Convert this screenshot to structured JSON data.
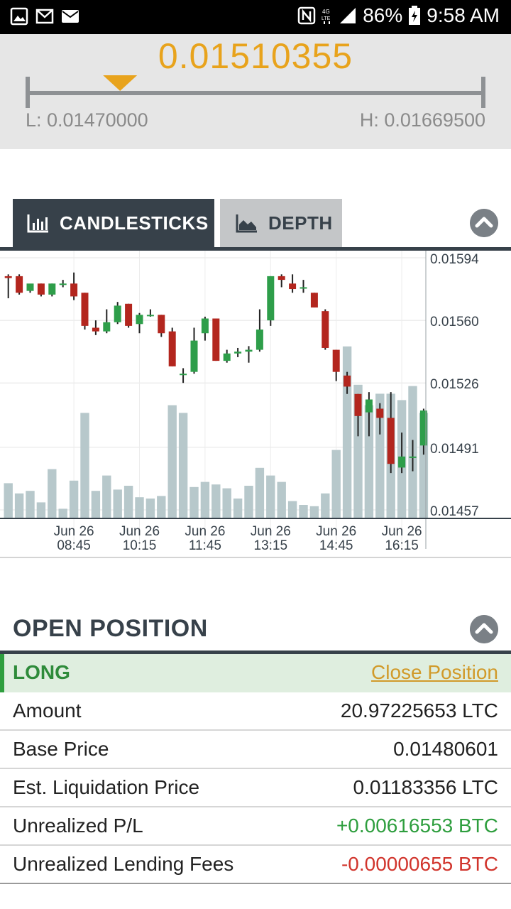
{
  "status_bar": {
    "battery": "86%",
    "time": "9:58 AM",
    "icons": [
      "gallery-icon",
      "gmail-icon",
      "mail-icon",
      "nfc-icon",
      "lte-icon",
      "signal-icon",
      "battery-icon"
    ]
  },
  "ticker": {
    "last_price": "0.01510355",
    "low_label": "L: 0.01470000",
    "high_label": "H: 0.01669500",
    "low": 0.0147,
    "high": 0.016695,
    "marker_position_fraction": 0.2
  },
  "tabs": [
    {
      "label": "CANDLESTICKS",
      "icon": "bar-chart-icon",
      "active": true
    },
    {
      "label": "DEPTH",
      "icon": "area-chart-icon",
      "active": false
    }
  ],
  "chart_data": {
    "type": "candlestick",
    "y_tick_labels": [
      "0.01594",
      "0.01560",
      "0.01526",
      "0.01491",
      "0.01457"
    ],
    "ylim": [
      0.01457,
      0.01594
    ],
    "x_tick_labels": [
      [
        "Jun 26",
        "08:45"
      ],
      [
        "Jun 26",
        "10:15"
      ],
      [
        "Jun 26",
        "11:45"
      ],
      [
        "Jun 26",
        "13:15"
      ],
      [
        "Jun 26",
        "14:45"
      ],
      [
        "Jun 26",
        "16:15"
      ]
    ],
    "grid": true,
    "up_color": "#2e9e4a",
    "down_color": "#b3261e",
    "volume_color": "#b7c8cb",
    "candles": [
      {
        "o": 0.01584,
        "h": 0.01585,
        "l": 0.01572,
        "c": 0.01583
      },
      {
        "o": 0.01584,
        "h": 0.01585,
        "l": 0.01574,
        "c": 0.01575
      },
      {
        "o": 0.01576,
        "h": 0.01579,
        "l": 0.01575,
        "c": 0.0158
      },
      {
        "o": 0.0158,
        "h": 0.0158,
        "l": 0.01573,
        "c": 0.01574
      },
      {
        "o": 0.01574,
        "h": 0.0158,
        "l": 0.01573,
        "c": 0.0158
      },
      {
        "o": 0.0158,
        "h": 0.01582,
        "l": 0.01578,
        "c": 0.0158
      },
      {
        "o": 0.0158,
        "h": 0.01586,
        "l": 0.01571,
        "c": 0.01573
      },
      {
        "o": 0.01575,
        "h": 0.01575,
        "l": 0.01555,
        "c": 0.01557
      },
      {
        "o": 0.01556,
        "h": 0.0156,
        "l": 0.01552,
        "c": 0.01554
      },
      {
        "o": 0.01554,
        "h": 0.01566,
        "l": 0.01553,
        "c": 0.01559
      },
      {
        "o": 0.01559,
        "h": 0.0157,
        "l": 0.01558,
        "c": 0.01568
      },
      {
        "o": 0.01569,
        "h": 0.01569,
        "l": 0.01556,
        "c": 0.01557
      },
      {
        "o": 0.01558,
        "h": 0.01564,
        "l": 0.01553,
        "c": 0.01563
      },
      {
        "o": 0.01563,
        "h": 0.01566,
        "l": 0.01562,
        "c": 0.01563
      },
      {
        "o": 0.01563,
        "h": 0.01563,
        "l": 0.01551,
        "c": 0.01553
      },
      {
        "o": 0.01554,
        "h": 0.01556,
        "l": 0.01535,
        "c": 0.01535
      },
      {
        "o": 0.01531,
        "h": 0.01534,
        "l": 0.01526,
        "c": 0.01531
      },
      {
        "o": 0.01532,
        "h": 0.01556,
        "l": 0.01531,
        "c": 0.01549
      },
      {
        "o": 0.01553,
        "h": 0.01562,
        "l": 0.01549,
        "c": 0.01561
      },
      {
        "o": 0.01561,
        "h": 0.01561,
        "l": 0.01538,
        "c": 0.01538
      },
      {
        "o": 0.01538,
        "h": 0.01544,
        "l": 0.01537,
        "c": 0.01542
      },
      {
        "o": 0.01542,
        "h": 0.01545,
        "l": 0.0154,
        "c": 0.01543
      },
      {
        "o": 0.01543,
        "h": 0.01546,
        "l": 0.01537,
        "c": 0.01544
      },
      {
        "o": 0.01544,
        "h": 0.01566,
        "l": 0.01543,
        "c": 0.01555
      },
      {
        "o": 0.0156,
        "h": 0.01584,
        "l": 0.01557,
        "c": 0.01584
      },
      {
        "o": 0.01584,
        "h": 0.01585,
        "l": 0.01578,
        "c": 0.01582
      },
      {
        "o": 0.0158,
        "h": 0.01585,
        "l": 0.01575,
        "c": 0.01577
      },
      {
        "o": 0.01578,
        "h": 0.01582,
        "l": 0.01575,
        "c": 0.01578
      },
      {
        "o": 0.01575,
        "h": 0.01575,
        "l": 0.01567,
        "c": 0.01567
      },
      {
        "o": 0.01565,
        "h": 0.01566,
        "l": 0.01544,
        "c": 0.01545
      },
      {
        "o": 0.01544,
        "h": 0.01544,
        "l": 0.01527,
        "c": 0.01532
      },
      {
        "o": 0.0153,
        "h": 0.01532,
        "l": 0.0152,
        "c": 0.01524
      },
      {
        "o": 0.0152,
        "h": 0.0152,
        "l": 0.01497,
        "c": 0.01508
      },
      {
        "o": 0.0151,
        "h": 0.01521,
        "l": 0.01497,
        "c": 0.01517
      },
      {
        "o": 0.01512,
        "h": 0.01515,
        "l": 0.01498,
        "c": 0.01507
      },
      {
        "o": 0.01507,
        "h": 0.01521,
        "l": 0.01477,
        "c": 0.01482
      },
      {
        "o": 0.0148,
        "h": 0.01499,
        "l": 0.01477,
        "c": 0.01486
      },
      {
        "o": 0.01486,
        "h": 0.01495,
        "l": 0.01478,
        "c": 0.01486
      },
      {
        "o": 0.01492,
        "h": 0.01512,
        "l": 0.01487,
        "c": 0.01511
      }
    ],
    "volumes": [
      0.27,
      0.19,
      0.21,
      0.12,
      0.38,
      0.07,
      0.29,
      0.82,
      0.21,
      0.33,
      0.22,
      0.25,
      0.16,
      0.15,
      0.17,
      0.88,
      0.82,
      0.24,
      0.28,
      0.26,
      0.23,
      0.15,
      0.25,
      0.39,
      0.33,
      0.28,
      0.13,
      0.1,
      0.09,
      0.19,
      0.53,
      1.34,
      1.04,
      0.88,
      0.97,
      0.97,
      0.92,
      1.03,
      0.82
    ]
  },
  "open_position": {
    "title": "OPEN POSITION",
    "side": "LONG",
    "close_label": "Close Position",
    "rows": [
      {
        "label": "Amount",
        "value": "20.97225653 LTC"
      },
      {
        "label": "Base Price",
        "value": "0.01480601"
      },
      {
        "label": "Est. Liquidation Price",
        "value": "0.01183356 LTC"
      },
      {
        "label": "Unrealized P/L",
        "value": "+0.00616553 BTC"
      },
      {
        "label": "Unrealized Lending Fees",
        "value": "-0.00000655 BTC"
      }
    ]
  },
  "colors": {
    "accent": "#e8a31c",
    "dark": "#37414a",
    "positive": "#2e9e3e",
    "negative": "#d1342c"
  }
}
